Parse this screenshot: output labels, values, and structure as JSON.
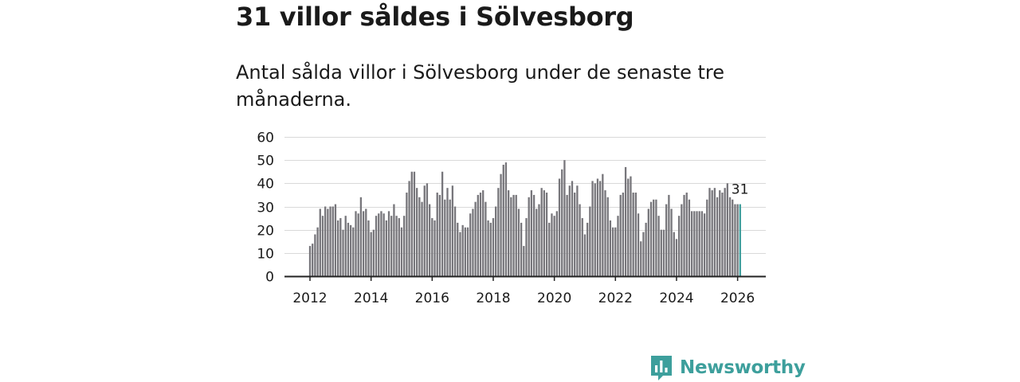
{
  "header": {
    "title": "31 villor såldes i Sölvesborg",
    "subtitle": "Antal sålda villor i Sölvesborg under de senaste tre månaderna."
  },
  "chart_data": {
    "type": "bar",
    "title": "31 villor såldes i Sölvesborg",
    "subtitle": "Antal sålda villor i Sölvesborg under de senaste tre månaderna.",
    "xlabel": "",
    "ylabel": "",
    "ylim": [
      0,
      60
    ],
    "yticks": [
      0,
      10,
      20,
      30,
      40,
      50,
      60
    ],
    "x_start": "2012-01",
    "xticks": [
      2012,
      2014,
      2016,
      2018,
      2020,
      2022,
      2024,
      2026
    ],
    "grid": true,
    "bar_color": "#77767b",
    "highlight_color": "#3d9f9c",
    "highlight_last": true,
    "last_value_label": "31",
    "values": [
      13,
      14,
      18,
      21,
      29,
      26,
      30,
      29,
      30,
      30,
      31,
      24,
      25,
      20,
      26,
      23,
      22,
      21,
      28,
      27,
      34,
      28,
      29,
      24,
      19,
      20,
      26,
      27,
      28,
      27,
      24,
      28,
      26,
      31,
      26,
      25,
      21,
      26,
      36,
      41,
      45,
      45,
      38,
      34,
      32,
      39,
      40,
      31,
      25,
      24,
      36,
      35,
      45,
      33,
      38,
      33,
      39,
      30,
      23,
      19,
      22,
      21,
      21,
      27,
      29,
      32,
      35,
      36,
      37,
      32,
      24,
      23,
      25,
      30,
      38,
      44,
      48,
      49,
      37,
      34,
      35,
      35,
      29,
      23,
      13,
      25,
      34,
      37,
      35,
      29,
      31,
      38,
      37,
      36,
      23,
      27,
      26,
      28,
      42,
      46,
      50,
      35,
      39,
      41,
      36,
      39,
      31,
      25,
      18,
      23,
      30,
      41,
      40,
      42,
      41,
      44,
      37,
      34,
      24,
      21,
      21,
      26,
      35,
      36,
      47,
      42,
      43,
      36,
      36,
      27,
      15,
      19,
      23,
      29,
      32,
      33,
      33,
      26,
      20,
      20,
      31,
      35,
      29,
      19,
      16,
      26,
      31,
      35,
      36,
      33,
      28,
      28,
      28,
      28,
      28,
      27,
      33,
      38,
      37,
      38,
      34,
      37,
      36,
      38,
      40,
      34,
      33,
      31,
      31,
      31
    ]
  },
  "brand": {
    "name": "Newsworthy",
    "icon": "newsworthy-logo-icon",
    "color": "#3d9f9c"
  }
}
